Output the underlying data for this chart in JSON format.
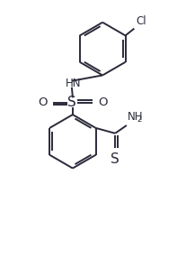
{
  "bg_color": "#ffffff",
  "bond_color": "#2a2a3a",
  "bond_lw": 1.4,
  "text_color": "#2a2a3a",
  "font_size": 8.5,
  "fig_width": 1.97,
  "fig_height": 2.96,
  "dpi": 100,
  "xlim": [
    0,
    10
  ],
  "ylim": [
    0,
    15
  ]
}
